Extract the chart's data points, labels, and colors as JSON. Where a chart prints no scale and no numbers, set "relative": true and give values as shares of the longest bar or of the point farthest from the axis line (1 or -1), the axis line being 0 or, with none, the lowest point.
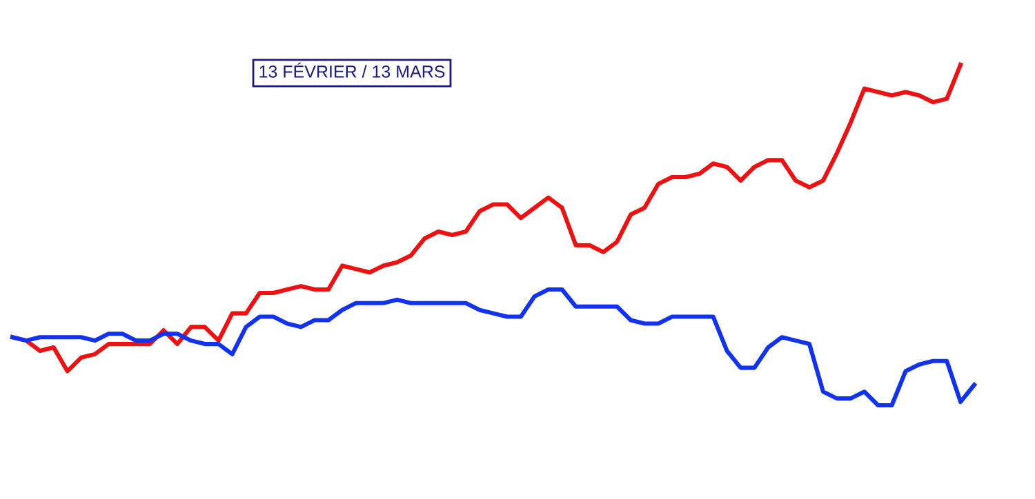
{
  "chart_data": {
    "type": "line",
    "relative": true,
    "title": "13 FÉVRIER / 13 MARS",
    "categories": [
      null,
      null,
      null,
      null,
      null,
      null,
      null,
      null,
      null,
      null,
      null,
      null,
      null,
      null,
      null,
      null,
      null,
      null,
      null,
      null,
      null,
      null,
      null,
      null,
      null,
      null,
      null,
      null,
      null,
      null,
      null,
      null,
      null,
      null,
      null,
      null,
      null,
      null,
      null,
      null,
      null,
      null,
      null,
      null,
      null,
      null,
      null,
      null,
      null,
      null,
      null,
      null,
      null,
      null,
      null,
      null,
      null,
      null,
      null,
      null,
      null,
      null,
      null,
      null,
      null,
      null,
      null,
      null,
      null,
      null,
      null
    ],
    "series": [
      {
        "color": "#ee1111",
        "values": [
          0.2,
          0.19,
          0.16,
          0.17,
          0.1,
          0.14,
          0.15,
          0.18,
          0.18,
          0.18,
          0.18,
          0.22,
          0.18,
          0.23,
          0.23,
          0.19,
          0.27,
          0.27,
          0.33,
          0.33,
          0.34,
          0.35,
          0.34,
          0.34,
          0.41,
          0.4,
          0.39,
          0.41,
          0.42,
          0.44,
          0.49,
          0.51,
          0.5,
          0.51,
          0.57,
          0.59,
          0.59,
          0.55,
          0.58,
          0.61,
          0.58,
          0.47,
          0.47,
          0.45,
          0.48,
          0.56,
          0.58,
          0.65,
          0.67,
          0.67,
          0.68,
          0.71,
          0.7,
          0.66,
          0.7,
          0.72,
          0.72,
          0.66,
          0.64,
          0.66,
          0.74,
          0.83,
          0.93,
          0.92,
          0.91,
          0.92,
          0.91,
          0.89,
          0.9,
          1,
          null
        ]
      },
      {
        "color": "#1133ee",
        "values": [
          0.2,
          0.19,
          0.2,
          0.2,
          0.2,
          0.2,
          0.19,
          0.21,
          0.21,
          0.19,
          0.19,
          0.21,
          0.21,
          0.19,
          0.18,
          0.18,
          0.15,
          0.23,
          0.26,
          0.26,
          0.24,
          0.23,
          0.25,
          0.25,
          0.28,
          0.3,
          0.3,
          0.3,
          0.31,
          0.3,
          0.3,
          0.3,
          0.3,
          0.3,
          0.28,
          0.27,
          0.26,
          0.26,
          0.32,
          0.34,
          0.34,
          0.29,
          0.29,
          0.29,
          0.29,
          0.25,
          0.24,
          0.24,
          0.26,
          0.26,
          0.26,
          0.26,
          0.16,
          0.11,
          0.11,
          0.17,
          0.2,
          0.19,
          0.18,
          0.04,
          0.02,
          0.02,
          0.04,
          0,
          0,
          0.1,
          0.12,
          0.13,
          0.13,
          0.01,
          0.06
        ]
      }
    ],
    "marker": "none",
    "line_style": "solid"
  }
}
